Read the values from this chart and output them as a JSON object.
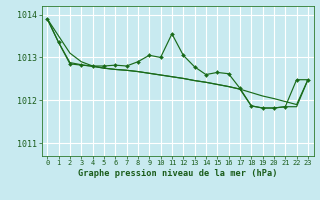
{
  "title": "Graphe pression niveau de la mer (hPa)",
  "bg_color": "#c8eaf0",
  "grid_color": "#ffffff",
  "line_color": "#1a6b1a",
  "xlim": [
    -0.5,
    23.5
  ],
  "ylim": [
    1010.7,
    1014.2
  ],
  "yticks": [
    1011,
    1012,
    1013,
    1014
  ],
  "xticks": [
    0,
    1,
    2,
    3,
    4,
    5,
    6,
    7,
    8,
    9,
    10,
    11,
    12,
    13,
    14,
    15,
    16,
    17,
    18,
    19,
    20,
    21,
    22,
    23
  ],
  "s_jagged": [
    1013.9,
    1013.35,
    1012.85,
    1012.82,
    1012.8,
    1012.8,
    1012.82,
    1012.8,
    1012.9,
    1013.05,
    1013.0,
    1013.55,
    1013.05,
    1012.78,
    1012.6,
    1012.65,
    1012.62,
    1012.28,
    1011.87,
    1011.82,
    1011.82,
    1011.85,
    1012.48,
    1012.48
  ],
  "s_trend1": [
    1013.9,
    1013.35,
    1012.88,
    1012.83,
    1012.79,
    1012.75,
    1012.72,
    1012.7,
    1012.67,
    1012.63,
    1012.59,
    1012.55,
    1012.51,
    1012.46,
    1012.42,
    1012.37,
    1012.32,
    1012.26,
    1012.18,
    1012.1,
    1012.04,
    1011.97,
    1011.9,
    1012.48
  ],
  "s_trend2": [
    1013.9,
    1013.5,
    1013.1,
    1012.9,
    1012.8,
    1012.75,
    1012.72,
    1012.7,
    1012.67,
    1012.63,
    1012.59,
    1012.55,
    1012.51,
    1012.46,
    1012.42,
    1012.37,
    1012.32,
    1012.26,
    1011.87,
    1011.82,
    1011.82,
    1011.85,
    1011.85,
    1012.48
  ]
}
